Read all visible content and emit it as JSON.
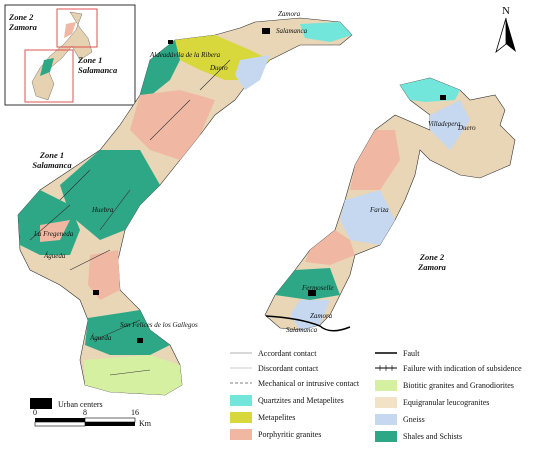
{
  "inset": {
    "zone2": "Zone 2",
    "zone2_place": "Zamora",
    "zone1": "Zone 1",
    "zone1_place": "Salamanca"
  },
  "north": "N",
  "zone1": {
    "title": "Zone 1",
    "place": "Salamanca",
    "labels": [
      "Zamora",
      "Salamanca",
      "Aldeadávila de la Ribera",
      "Duero",
      "Huebra",
      "La Fregeneda",
      "Águeda",
      "San Felices de los Gallegos",
      "Águeda"
    ]
  },
  "zone2": {
    "title": "Zone 2",
    "place": "Zamora",
    "labels": [
      "Villadepera",
      "Duero",
      "Fariza",
      "Fermoselle",
      "Zamora",
      "Salamanca"
    ]
  },
  "legend": {
    "lines": [
      "Accordant contact",
      "Discordant contact",
      "Mechanical or intrusive contact",
      "Fault",
      "Failure with indication of subsidence"
    ],
    "urban": "Urban centers",
    "units": [
      {
        "name": "Quartzites and Metapelites",
        "color": "#72e6da"
      },
      {
        "name": "Metapelites",
        "color": "#d8d83c"
      },
      {
        "name": "Porphyritic granites",
        "color": "#f0b8a2"
      },
      {
        "name": "Biotitic granites and Granodiorites",
        "color": "#d6f0a2"
      },
      {
        "name": "Equigranular leucogranites",
        "color": "#f3e3c6"
      },
      {
        "name": "Gneiss",
        "color": "#c6d8f0"
      },
      {
        "name": "Shales and Schists",
        "color": "#2ea786"
      }
    ]
  },
  "scale": {
    "ticks": [
      "0",
      "8",
      "16"
    ],
    "unit": "Km"
  }
}
